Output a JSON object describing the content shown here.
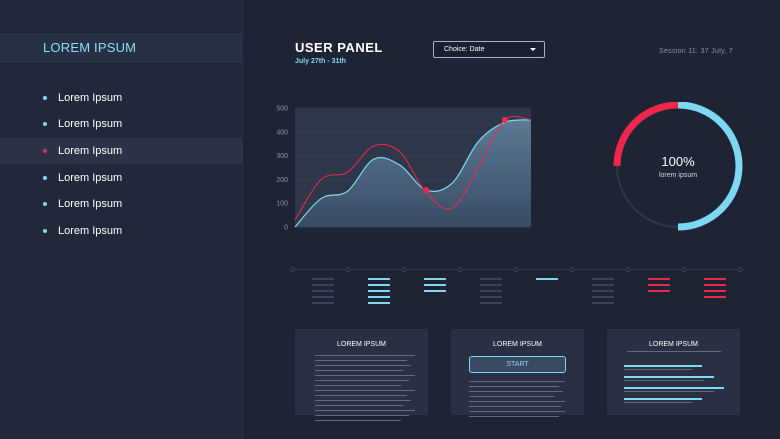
{
  "sidebar": {
    "title": "LOREM IPSUM",
    "items": [
      {
        "label": "Lorem Ipsum",
        "active": false
      },
      {
        "label": "Lorem Ipsum",
        "active": false
      },
      {
        "label": "Lorem Ipsum",
        "active": true
      },
      {
        "label": "Lorem Ipsum",
        "active": false
      },
      {
        "label": "Lorem Ipsum",
        "active": false
      },
      {
        "label": "Lorem Ipsum",
        "active": false
      }
    ]
  },
  "header": {
    "title": "USER PANEL",
    "subtitle": "July 27th - 31th",
    "dropdown": "Choice: Date",
    "session": "Session  11: 37  July, 7"
  },
  "chart_data": {
    "type": "area",
    "title": "",
    "xlabel": "",
    "ylabel": "",
    "ylim": [
      0,
      500
    ],
    "yticks": [
      "0",
      "100",
      "200",
      "300",
      "400",
      "500"
    ],
    "grid": true,
    "series": [
      {
        "values": [
          0,
          120,
          150,
          285,
          260,
          155,
          185,
          360,
          440,
          450
        ],
        "color": "#4d6b88"
      },
      {
        "values": [
          30,
          200,
          230,
          340,
          315,
          145,
          80,
          250,
          450,
          450
        ],
        "color": "#f0274d"
      }
    ],
    "markers": [
      {
        "x": 5,
        "y": 155
      },
      {
        "x": 8,
        "y": 450
      }
    ]
  },
  "ring": {
    "value": "100%",
    "label": "lorem ipsum",
    "fraction": 1.0,
    "color_main": "#7fd8f3",
    "color_accent": "#f0274d"
  },
  "equalizer": [
    {
      "bars": 5,
      "color": "#3b4358"
    },
    {
      "bars": 5,
      "color": "#7fd8f3"
    },
    {
      "bars": 3,
      "color": "#7fd8f3"
    },
    {
      "bars": 5,
      "color": "#3b4358"
    },
    {
      "bars": 1,
      "color": "#7fd8f3"
    },
    {
      "bars": 5,
      "color": "#3b4358"
    },
    {
      "bars": 3,
      "color": "#f0274d"
    },
    {
      "bars": 4,
      "color": "#f0274d"
    }
  ],
  "cards": [
    {
      "title": "LOREM IPSUM"
    },
    {
      "title": "LOREM IPSUM",
      "button": "START"
    },
    {
      "title": "LOREM IPSUM"
    }
  ]
}
